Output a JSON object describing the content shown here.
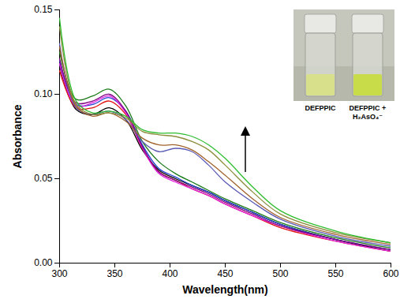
{
  "chart_data": {
    "type": "line",
    "x_label": "Wavelength(nm)",
    "y_label": "Absorbance",
    "xlim": [
      300,
      600
    ],
    "xticks": [
      300,
      350,
      400,
      450,
      500,
      550,
      600
    ],
    "ylim": [
      0,
      0.15
    ],
    "yticks": [
      {
        "value": 0,
        "label": "0.00"
      },
      {
        "value": 0.05,
        "label": "0.05"
      },
      {
        "value": 0.1,
        "label": "0.10"
      },
      {
        "value": 0.15,
        "label": "0.15"
      }
    ],
    "grid": false,
    "annotations": [
      "DEFPPIC",
      "DEFPPIC + H₂AsO₄⁻"
    ],
    "x": [
      300,
      315,
      330,
      345,
      360,
      375,
      390,
      405,
      420,
      435,
      450,
      475,
      500,
      550,
      600
    ],
    "series": [
      {
        "color": "#000000",
        "values": [
          0.117,
          0.091,
          0.088,
          0.092,
          0.085,
          0.067,
          0.055,
          0.05,
          0.046,
          0.042,
          0.037,
          0.03,
          0.023,
          0.014,
          0.007
        ]
      },
      {
        "color": "#e01010",
        "values": [
          0.114,
          0.092,
          0.092,
          0.096,
          0.088,
          0.068,
          0.054,
          0.049,
          0.044,
          0.04,
          0.035,
          0.028,
          0.021,
          0.013,
          0.007
        ]
      },
      {
        "color": "#1f3fd0",
        "values": [
          0.12,
          0.094,
          0.094,
          0.098,
          0.09,
          0.07,
          0.056,
          0.051,
          0.046,
          0.042,
          0.037,
          0.03,
          0.023,
          0.014,
          0.008
        ]
      },
      {
        "color": "#e020e0",
        "values": [
          0.118,
          0.093,
          0.095,
          0.099,
          0.089,
          0.068,
          0.053,
          0.048,
          0.044,
          0.04,
          0.035,
          0.028,
          0.022,
          0.013,
          0.007
        ]
      },
      {
        "color": "#800080",
        "values": [
          0.121,
          0.095,
          0.096,
          0.1,
          0.09,
          0.069,
          0.054,
          0.049,
          0.045,
          0.041,
          0.036,
          0.029,
          0.022,
          0.014,
          0.008
        ]
      },
      {
        "color": "#1a7a1a",
        "values": [
          0.125,
          0.097,
          0.099,
          0.103,
          0.093,
          0.072,
          0.06,
          0.053,
          0.048,
          0.043,
          0.038,
          0.031,
          0.024,
          0.015,
          0.009
        ]
      },
      {
        "color": "#5a5ab4",
        "values": [
          0.13,
          0.092,
          0.088,
          0.09,
          0.085,
          0.072,
          0.066,
          0.068,
          0.066,
          0.058,
          0.048,
          0.036,
          0.026,
          0.016,
          0.01
        ]
      },
      {
        "color": "#a0622d",
        "values": [
          0.128,
          0.093,
          0.087,
          0.089,
          0.084,
          0.074,
          0.07,
          0.07,
          0.067,
          0.06,
          0.052,
          0.038,
          0.027,
          0.017,
          0.011
        ]
      },
      {
        "color": "#8c8c3c",
        "values": [
          0.14,
          0.094,
          0.088,
          0.089,
          0.086,
          0.078,
          0.076,
          0.075,
          0.072,
          0.067,
          0.058,
          0.042,
          0.029,
          0.018,
          0.012
        ]
      },
      {
        "color": "#2ebd2e",
        "values": [
          0.145,
          0.096,
          0.089,
          0.09,
          0.087,
          0.079,
          0.077,
          0.077,
          0.075,
          0.07,
          0.062,
          0.045,
          0.031,
          0.019,
          0.012
        ]
      }
    ]
  }
}
